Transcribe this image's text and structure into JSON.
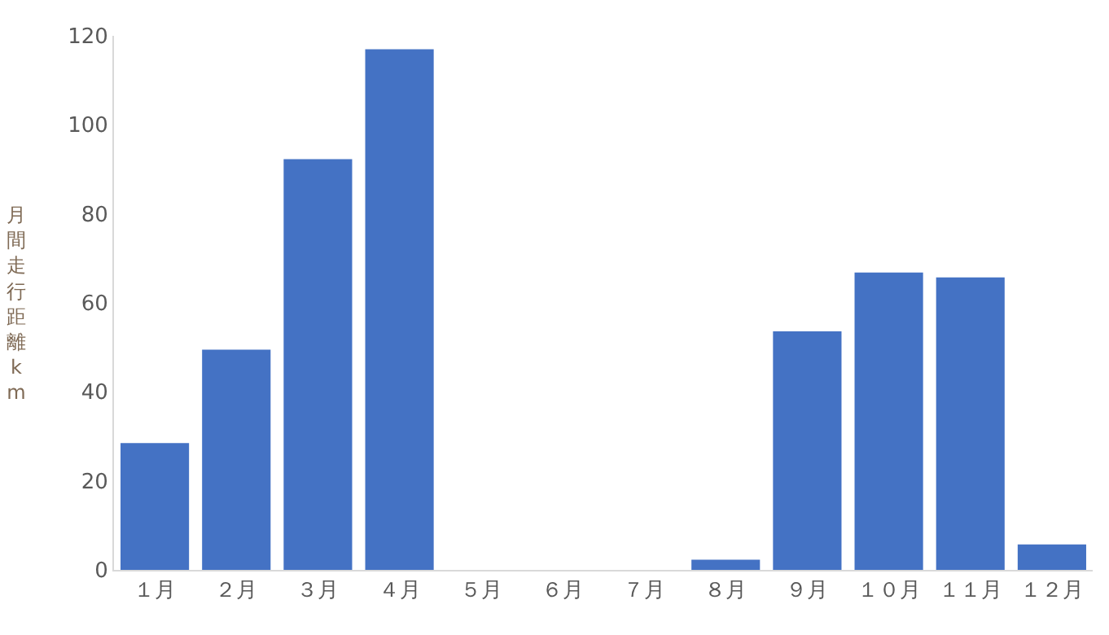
{
  "chart_data": {
    "type": "bar",
    "ylabel": "月間走行距離km",
    "categories": [
      "１月",
      "２月",
      "３月",
      "４月",
      "５月",
      "６月",
      "７月",
      "８月",
      "９月",
      "１０月",
      "１１月",
      "１２月"
    ],
    "values": [
      28.5,
      49.5,
      92.3,
      117,
      0,
      0,
      0,
      2.3,
      53.6,
      66.8,
      65.7,
      5.7
    ],
    "color": "#4472c4",
    "ylim": [
      0,
      120
    ],
    "yticks": [
      0,
      20,
      40,
      60,
      80,
      100,
      120
    ]
  }
}
